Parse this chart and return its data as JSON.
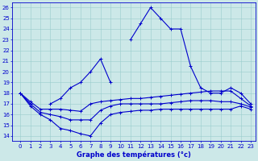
{
  "xlabel": "Graphe des températures (°c)",
  "x": [
    0,
    1,
    2,
    3,
    4,
    5,
    6,
    7,
    8,
    9,
    10,
    11,
    12,
    13,
    14,
    15,
    16,
    17,
    18,
    19,
    20,
    21,
    22,
    23
  ],
  "main_line": [
    18,
    17,
    null,
    null,
    null,
    null,
    null,
    null,
    null,
    null,
    null,
    null,
    null,
    null,
    null,
    null,
    null,
    null,
    null,
    null,
    null,
    null,
    null,
    null
  ],
  "main_line2": [
    null,
    null,
    null,
    17,
    17.5,
    18.5,
    19.0,
    20.0,
    21.2,
    19.0,
    null,
    23,
    24.5,
    26,
    25,
    24,
    24,
    20.5,
    18.5,
    18,
    18,
    18.5,
    18,
    17
  ],
  "upper_line": [
    18,
    17.2,
    16.5,
    16.5,
    16.5,
    16.4,
    16.3,
    17.0,
    17.2,
    17.3,
    17.4,
    17.5,
    17.5,
    17.6,
    17.7,
    17.8,
    17.9,
    18.0,
    18.1,
    18.2,
    18.2,
    18.2,
    17.5,
    16.8
  ],
  "lower_line": [
    18,
    16.8,
    16.0,
    15.5,
    14.7,
    14.5,
    14.2,
    14.0,
    15.2,
    16.0,
    16.2,
    16.3,
    16.4,
    16.4,
    16.5,
    16.5,
    16.5,
    16.5,
    16.5,
    16.5,
    16.5,
    16.5,
    16.8,
    16.5
  ],
  "mid_line": [
    18,
    17.0,
    16.2,
    16.0,
    15.8,
    15.5,
    15.5,
    15.5,
    16.4,
    16.8,
    17.0,
    17.0,
    17.0,
    17.0,
    17.0,
    17.1,
    17.2,
    17.3,
    17.3,
    17.3,
    17.2,
    17.2,
    17.0,
    16.7
  ],
  "bg_color": "#cce8e8",
  "grid_color": "#99cccc",
  "line_color": "#0000cc",
  "ylim_min": 13.5,
  "ylim_max": 26.5,
  "yticks": [
    14,
    15,
    16,
    17,
    18,
    19,
    20,
    21,
    22,
    23,
    24,
    25,
    26
  ],
  "xticks": [
    0,
    1,
    2,
    3,
    4,
    5,
    6,
    7,
    8,
    9,
    10,
    11,
    12,
    13,
    14,
    15,
    16,
    17,
    18,
    19,
    20,
    21,
    22,
    23
  ],
  "tick_fontsize": 5.0,
  "xlabel_fontsize": 6.0,
  "lw": 0.8,
  "ms": 2.5
}
